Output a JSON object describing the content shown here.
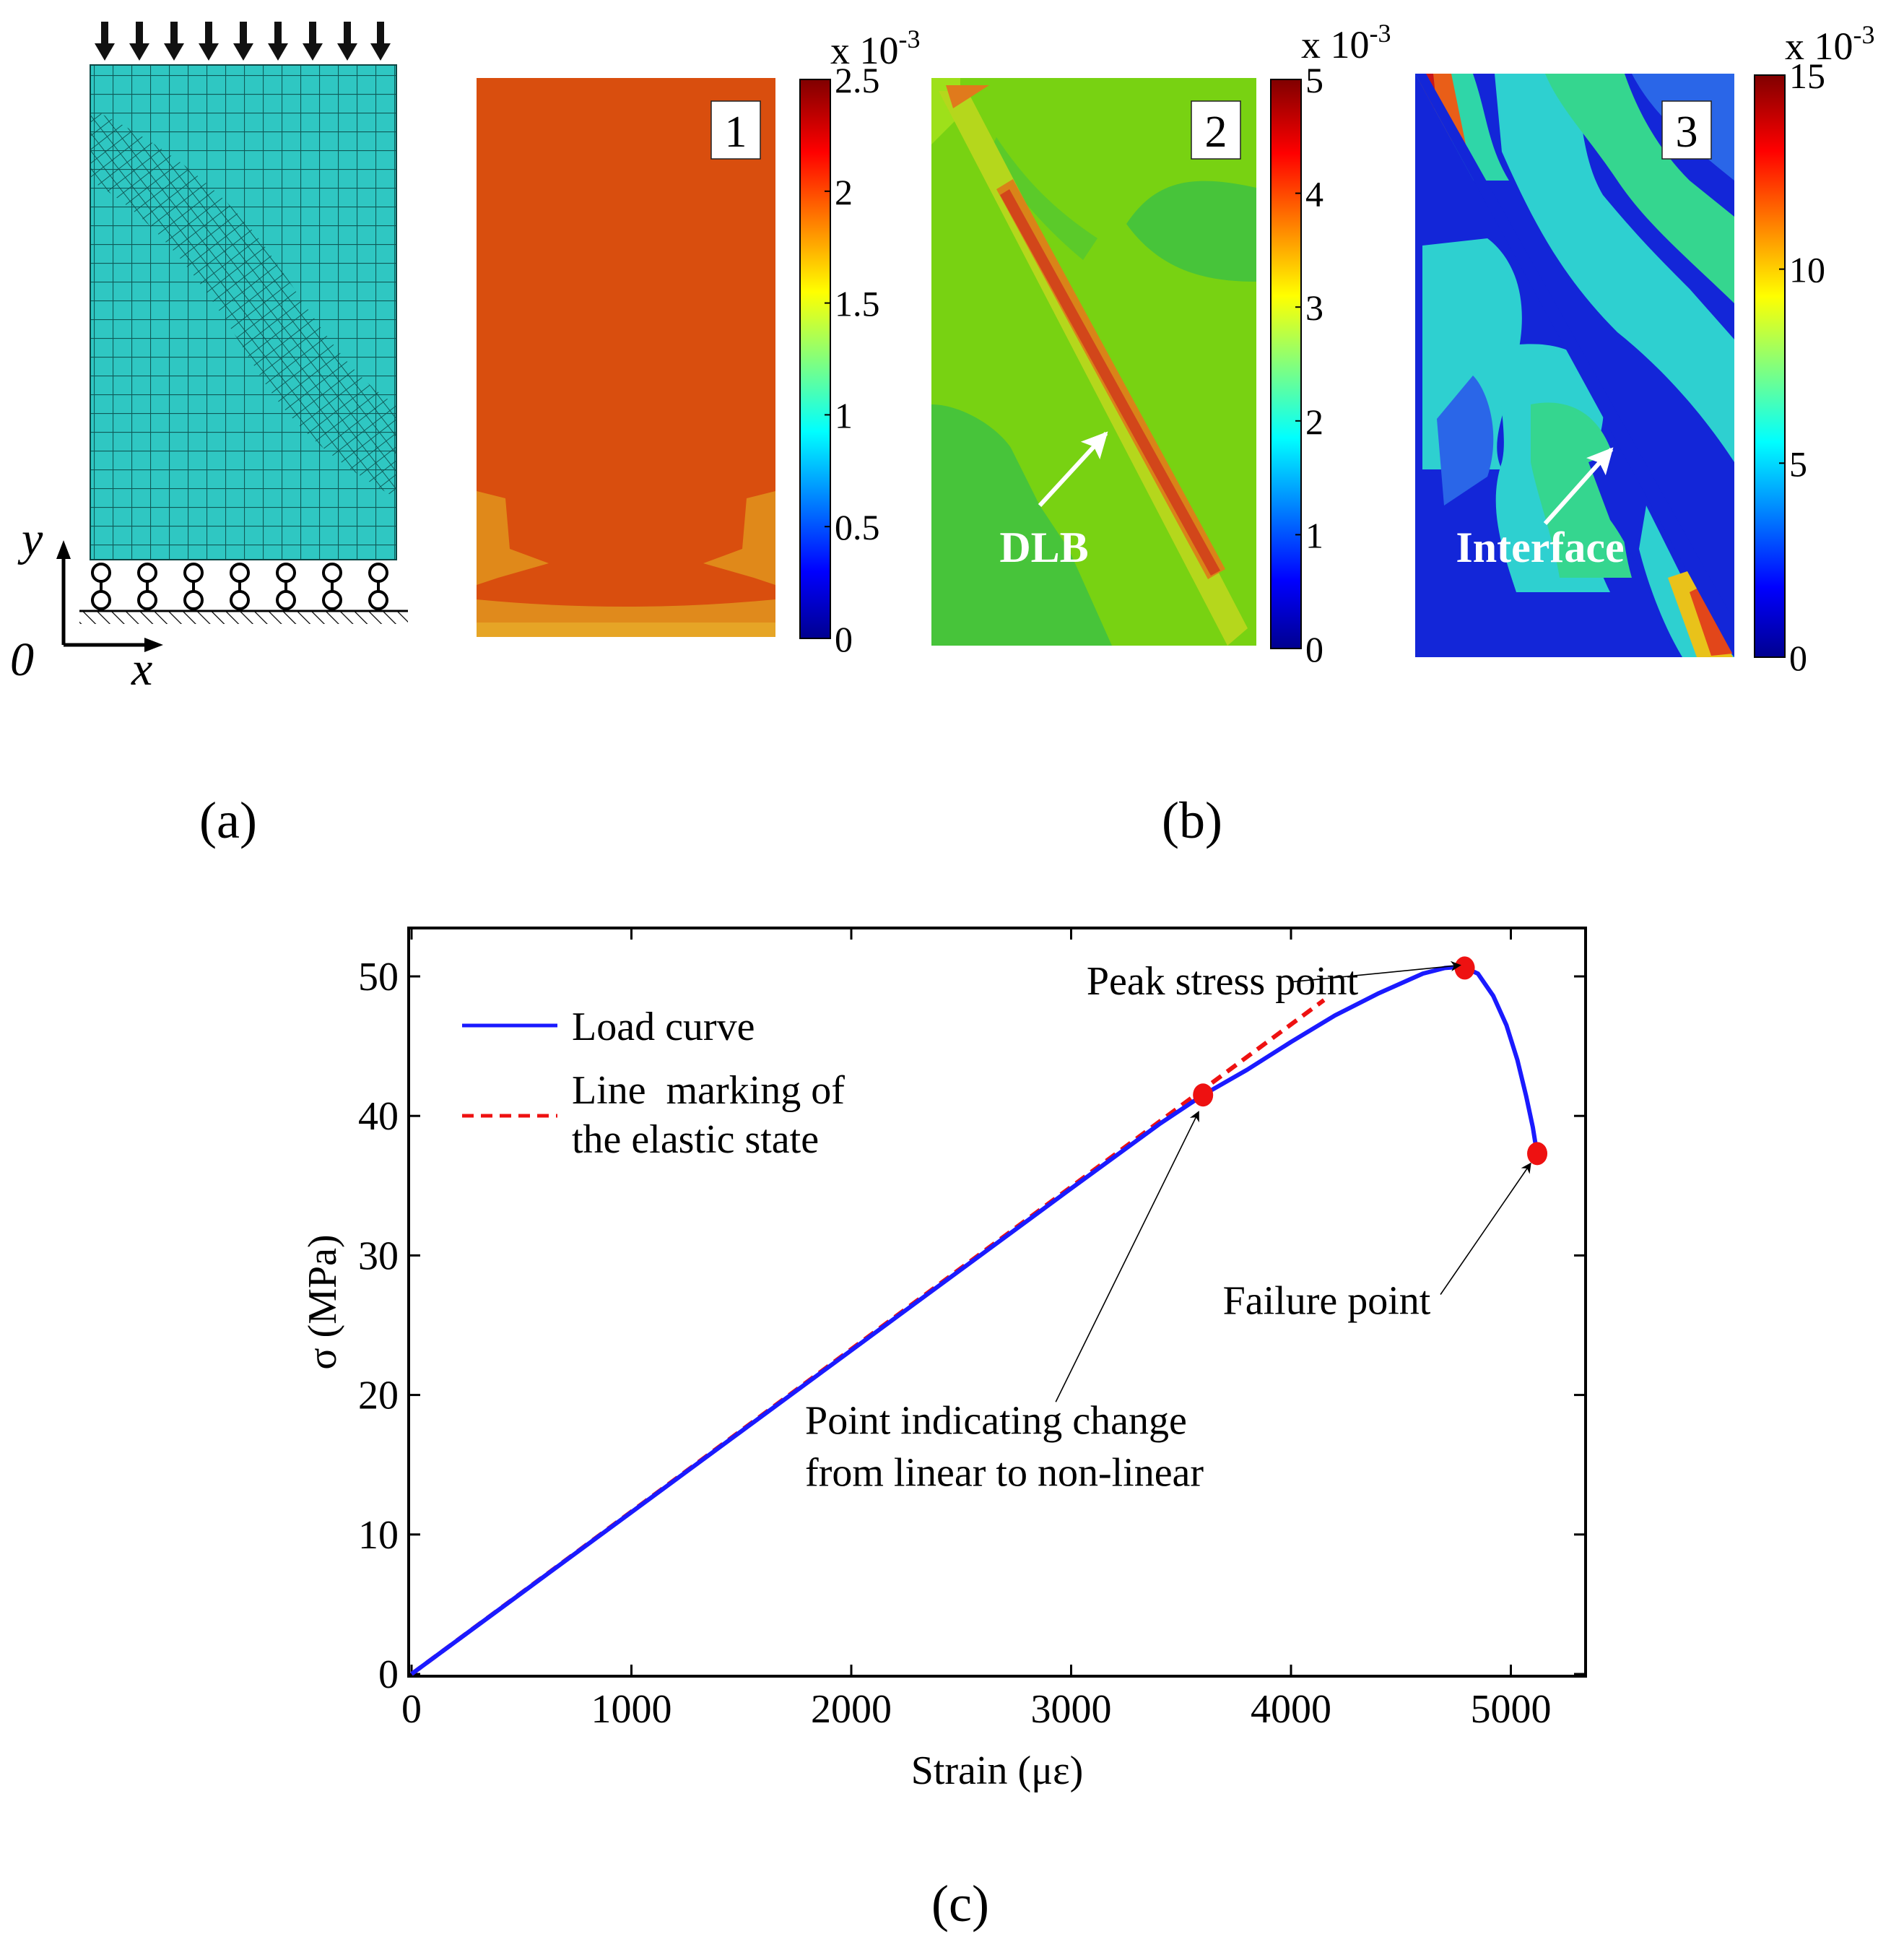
{
  "panel_a": {
    "label": "(a)",
    "axis_y": "y",
    "axis_x": "x",
    "origin": "0"
  },
  "panel_b": {
    "label": "(b)",
    "colorbar_multiplier": "x 10",
    "colorbar_exponent": "-3",
    "maps": [
      {
        "id": "1",
        "ticks": [
          "2.5",
          "2",
          "1.5",
          "1",
          "0.5",
          "0"
        ],
        "tick_values": [
          2.5,
          2,
          1.5,
          1,
          0.5,
          0
        ],
        "max": 2.5
      },
      {
        "id": "2",
        "ticks": [
          "5",
          "4",
          "3",
          "2",
          "1",
          "0"
        ],
        "tick_values": [
          5,
          4,
          3,
          2,
          1,
          0
        ],
        "max": 5,
        "annotation": "DLB"
      },
      {
        "id": "3",
        "ticks": [
          "15",
          "10",
          "5",
          "0"
        ],
        "tick_values": [
          15,
          10,
          5,
          0
        ],
        "max": 15,
        "annotation": "Interface"
      }
    ]
  },
  "panel_c": {
    "label": "(c)"
  },
  "chart_data": {
    "type": "line",
    "xlabel": "Strain (με)",
    "ylabel": "σ (MPa)",
    "xlim": [
      0,
      5300
    ],
    "ylim": [
      0,
      54
    ],
    "xticks": [
      0,
      1000,
      2000,
      3000,
      4000,
      5000
    ],
    "xtick_labels": [
      "0",
      "1000",
      "2000",
      "3000",
      "4000",
      "5000"
    ],
    "yticks": [
      0,
      10,
      20,
      30,
      40,
      50
    ],
    "ytick_labels": [
      "0",
      "10",
      "20",
      "30",
      "40",
      "50"
    ],
    "legend": {
      "position": "top-left",
      "entries": [
        {
          "label": "Load curve",
          "color": "#1a1aff",
          "style": "solid"
        },
        {
          "label_line1": "Line  marking of",
          "label_line2": "the elastic state",
          "color": "#ee1111",
          "style": "dashed"
        }
      ]
    },
    "series": [
      {
        "name": "Load curve",
        "color": "#1a1aff",
        "x": [
          0,
          500,
          1000,
          1500,
          2000,
          2500,
          3000,
          3400,
          3600,
          3800,
          4000,
          4200,
          4400,
          4600,
          4700,
          4780,
          4850,
          4920,
          4980,
          5030,
          5070,
          5100,
          5110,
          5120
        ],
        "y": [
          0,
          5.8,
          11.6,
          17.4,
          23.2,
          29,
          34.8,
          39.4,
          41.5,
          43.3,
          45.3,
          47.2,
          48.8,
          50.2,
          50.6,
          50.7,
          50.2,
          48.6,
          46.5,
          44.0,
          41.4,
          39.2,
          38.2,
          37.3
        ]
      },
      {
        "name": "Line marking of the elastic state",
        "color": "#ee1111",
        "style": "dashed",
        "x": [
          0,
          4150
        ],
        "y": [
          0,
          48.3
        ]
      }
    ],
    "points": [
      {
        "name": "linear-limit",
        "x": 3600,
        "y": 41.5,
        "color": "#ee1111"
      },
      {
        "name": "peak",
        "x": 4790,
        "y": 50.6,
        "color": "#ee1111"
      },
      {
        "name": "failure",
        "x": 5120,
        "y": 37.3,
        "color": "#ee1111"
      }
    ],
    "annotations": [
      {
        "name": "peak-annotation",
        "text_line1": "Peak stress point",
        "text_line2": "",
        "text_x": 3070,
        "text_y": 48.7,
        "arrow_from_x": 4000,
        "arrow_from_y": 49.6,
        "arrow_to_x": 4770,
        "arrow_to_y": 50.8
      },
      {
        "name": "change-annotation",
        "text_line1": "Point indicating change",
        "text_line2": "from linear to non-linear",
        "text_x": 1790,
        "text_y": 17.2,
        "arrow_from_x": 2930,
        "arrow_from_y": 19.5,
        "arrow_to_x": 3580,
        "arrow_to_y": 40.3
      },
      {
        "name": "failure-annotation",
        "text_line1": "Failure point",
        "text_line2": "",
        "text_x": 3690,
        "text_y": 25.8,
        "arrow_from_x": 4680,
        "arrow_from_y": 27.2,
        "arrow_to_x": 5090,
        "arrow_to_y": 36.6
      }
    ]
  }
}
